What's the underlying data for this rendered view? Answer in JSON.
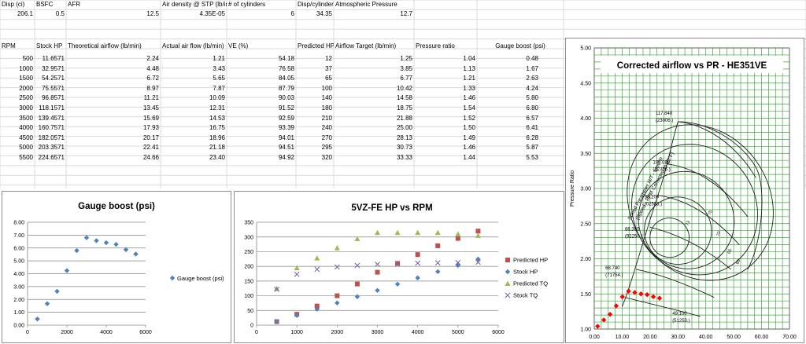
{
  "header_labels": [
    "Disp (ci)",
    "BSFC",
    "AFR",
    "Air density @ STP (lb/in",
    "# of cylinders",
    "Disp/cylinder",
    "Atmospheric Pressure"
  ],
  "header_values": [
    "206.1",
    "0.5",
    "12.5",
    "4.35E-05",
    "6",
    "34.35",
    "12.7"
  ],
  "table": {
    "columns": [
      "RPM",
      "Stock HP",
      "Theoretical airflow (lb/min)",
      "Actual air flow (lb/min)",
      "VE (%)",
      "Predicted HP",
      "Airflow Target (lb/min)",
      "Pressure ratio",
      "Gauge boost (psi)"
    ],
    "rows": [
      [
        "500",
        "11.6571",
        "2.24",
        "1.21",
        "54.18",
        "12",
        "1.25",
        "1.04",
        "0.48"
      ],
      [
        "1000",
        "32.9571",
        "4.48",
        "3.43",
        "76.58",
        "37",
        "3.85",
        "1.13",
        "1.67"
      ],
      [
        "1500",
        "54.2571",
        "6.72",
        "5.65",
        "84.05",
        "65",
        "6.77",
        "1.21",
        "2.63"
      ],
      [
        "2000",
        "75.5571",
        "8.97",
        "7.87",
        "87.79",
        "100",
        "10.42",
        "1.33",
        "4.24"
      ],
      [
        "2500",
        "96.8571",
        "11.21",
        "10.09",
        "90.03",
        "140",
        "14.58",
        "1.46",
        "5.80"
      ],
      [
        "3000",
        "118.1571",
        "13.45",
        "12.31",
        "91.52",
        "180",
        "18.75",
        "1.54",
        "6.80"
      ],
      [
        "3500",
        "139.4571",
        "15.69",
        "14.53",
        "92.59",
        "210",
        "21.88",
        "1.52",
        "6.57"
      ],
      [
        "4000",
        "160.7571",
        "17.93",
        "16.75",
        "93.39",
        "240",
        "25.00",
        "1.50",
        "6.41"
      ],
      [
        "4500",
        "182.0571",
        "20.17",
        "18.96",
        "94.01",
        "270",
        "28.13",
        "1.49",
        "6.28"
      ],
      [
        "5000",
        "203.3571",
        "22.41",
        "21.18",
        "94.51",
        "295",
        "30.73",
        "1.46",
        "5.87"
      ],
      [
        "5500",
        "224.6571",
        "24.66",
        "23.40",
        "94.92",
        "320",
        "33.33",
        "1.44",
        "5.53"
      ]
    ]
  },
  "chart_data": [
    {
      "type": "scatter",
      "title": "Gauge boost (psi)",
      "x": [
        500,
        1000,
        1500,
        2000,
        2500,
        3000,
        3500,
        4000,
        4500,
        5000,
        5500
      ],
      "series": [
        {
          "name": "Gauge boost (psi)",
          "color": "#4f81bd",
          "marker": "diamond",
          "values": [
            0.48,
            1.67,
            2.63,
            4.24,
            5.8,
            6.8,
            6.57,
            6.41,
            6.28,
            5.87,
            5.53
          ]
        }
      ],
      "xlim": [
        0,
        6000
      ],
      "ylim": [
        0,
        8
      ],
      "x_ticks": [
        "0",
        "2000",
        "4000",
        "6000"
      ],
      "y_ticks": [
        "0.00",
        "1.00",
        "2.00",
        "3.00",
        "4.00",
        "5.00",
        "6.00",
        "7.00",
        "8.00"
      ],
      "grid": "horizontal",
      "legend": "right"
    },
    {
      "type": "scatter",
      "title": "5VZ-FE HP vs RPM",
      "x": [
        500,
        1000,
        1500,
        2000,
        2500,
        3000,
        3500,
        4000,
        4500,
        5000,
        5500
      ],
      "series": [
        {
          "name": "Predicted HP",
          "color": "#c0504d",
          "marker": "square",
          "values": [
            12,
            37,
            65,
            100,
            140,
            180,
            210,
            240,
            270,
            295,
            320
          ]
        },
        {
          "name": "Stock HP",
          "color": "#4f81bd",
          "marker": "diamond",
          "values": [
            11.66,
            32.96,
            54.26,
            75.56,
            96.86,
            118.16,
            139.46,
            160.76,
            182.06,
            203.36,
            224.66
          ]
        },
        {
          "name": "Predicted TQ",
          "color": "#9bbb59",
          "marker": "triangle",
          "values": [
            125,
            195,
            228,
            263,
            294,
            315,
            315,
            315,
            315,
            310,
            305
          ]
        },
        {
          "name": "Stock TQ",
          "color": "#8064a2",
          "marker": "x",
          "values": [
            122,
            173,
            190,
            198,
            203,
            207,
            208,
            211,
            212,
            213,
            214
          ]
        }
      ],
      "xlim": [
        0,
        6000
      ],
      "ylim": [
        0,
        350
      ],
      "x_ticks": [
        "0",
        "1000",
        "2000",
        "3000",
        "4000",
        "5000",
        "6000"
      ],
      "y_ticks": [
        "0",
        "50",
        "100",
        "150",
        "200",
        "250",
        "300",
        "350"
      ],
      "grid": "horizontal",
      "legend": "right"
    },
    {
      "type": "scatter",
      "title": "Corrected airflow vs PR - HE351VE",
      "ylabel": "Pressure Ratio",
      "x": [
        1.21,
        3.43,
        5.65,
        7.87,
        10.09,
        12.31,
        14.53,
        16.75,
        18.96,
        21.18,
        23.4
      ],
      "series": [
        {
          "name": "",
          "color": "#ff0000",
          "marker": "diamond",
          "values": [
            1.04,
            1.13,
            1.21,
            1.33,
            1.46,
            1.54,
            1.52,
            1.5,
            1.49,
            1.46,
            1.44
          ]
        }
      ],
      "xlim": [
        0,
        70
      ],
      "ylim": [
        1,
        5
      ],
      "x_ticks": [
        "0.00",
        "10.00",
        "20.00",
        "30.00",
        "40.00",
        "50.00",
        "60.00",
        "70.00"
      ],
      "y_ticks": [
        "1.00",
        "1.50",
        "2.00",
        "2.50",
        "3.00",
        "3.50",
        "4.00",
        "4.50",
        "5.00"
      ],
      "speed_labels": [
        "117.840",
        "(23006.)",
        "108.020",
        "(12756.)",
        "98.200",
        "(02503.)",
        "88.380",
        "(92250.)",
        "68.740",
        "(71754.)",
        "49.100",
        "(51253.)"
      ],
      "speed_legend": [
        "Speed Parameter N/T - rpm/°R",
        "(Speed - RPM Corrected to 85°F)"
      ],
      "efficiency_labels": [
        "73",
        "75",
        "70",
        "65",
        "60"
      ],
      "grid": "both",
      "legend": "none"
    }
  ]
}
